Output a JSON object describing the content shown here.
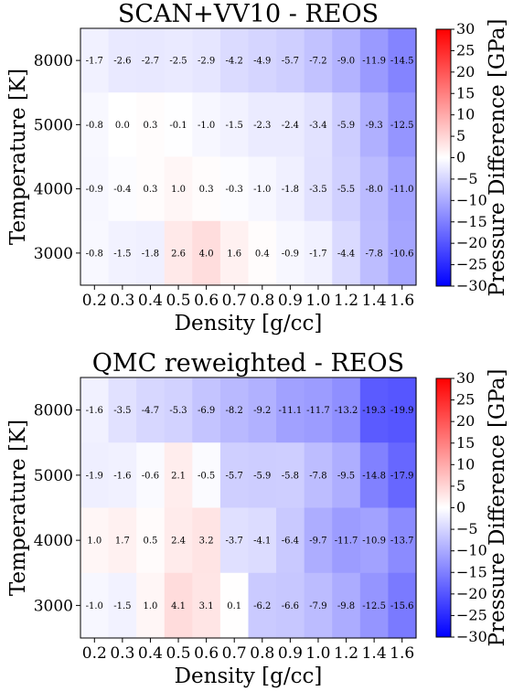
{
  "chart_data": [
    {
      "type": "heatmap",
      "title": "SCAN+VV10 - REOS",
      "xlabel": "Density [g/cc]",
      "ylabel": "Temperature [K]",
      "x_categories": [
        "0.2",
        "0.3",
        "0.4",
        "0.5",
        "0.6",
        "0.7",
        "0.8",
        "0.9",
        "1.0",
        "1.2",
        "1.4",
        "1.6"
      ],
      "y_categories": [
        "8000",
        "5000",
        "4000",
        "3000"
      ],
      "values": [
        [
          -1.7,
          -2.6,
          -2.7,
          -2.5,
          -2.9,
          -4.2,
          -4.9,
          -5.7,
          -7.2,
          -9.0,
          -11.9,
          -14.5
        ],
        [
          -0.8,
          0.0,
          0.3,
          -0.1,
          -1.0,
          -1.5,
          -2.3,
          -2.4,
          -3.4,
          -5.9,
          -9.3,
          -12.5
        ],
        [
          -0.9,
          -0.4,
          0.3,
          1.0,
          0.3,
          -0.3,
          -1.0,
          -1.8,
          -3.5,
          -5.5,
          -8.0,
          -11.0
        ],
        [
          -0.8,
          -1.5,
          -1.8,
          2.6,
          4.0,
          1.6,
          0.4,
          -0.9,
          -1.7,
          -4.4,
          -7.8,
          -10.6
        ]
      ],
      "labels": [
        [
          "-1.7",
          "-2.6",
          "-2.7",
          "-2.5",
          "-2.9",
          "-4.2",
          "-4.9",
          "-5.7",
          "-7.2",
          "-9.0",
          "-11.9",
          "-14.5"
        ],
        [
          "-0.8",
          "0.0",
          "0.3",
          "-0.1",
          "-1.0",
          "-1.5",
          "-2.3",
          "-2.4",
          "-3.4",
          "-5.9",
          "-9.3",
          "-12.5"
        ],
        [
          "-0.9",
          "-0.4",
          "0.3",
          "1.0",
          "0.3",
          "-0.3",
          "-1.0",
          "-1.8",
          "-3.5",
          "-5.5",
          "-8.0",
          "-11.0"
        ],
        [
          "-0.8",
          "-1.5",
          "-1.8",
          "2.6",
          "4.0",
          "1.6",
          "0.4",
          "-0.9",
          "-1.7",
          "-4.4",
          "-7.8",
          "-10.6"
        ]
      ],
      "colorbar": {
        "label": "Pressure Difference [GPa]",
        "range": [
          -30,
          30
        ],
        "ticks": [
          "30",
          "25",
          "20",
          "15",
          "10",
          "5",
          "0",
          "−5",
          "−10",
          "−15",
          "−20",
          "−25",
          "−30"
        ],
        "colormap": "bwr"
      }
    },
    {
      "type": "heatmap",
      "title": "QMC reweighted - REOS",
      "xlabel": "Density [g/cc]",
      "ylabel": "Temperature [K]",
      "x_categories": [
        "0.2",
        "0.3",
        "0.4",
        "0.5",
        "0.6",
        "0.7",
        "0.8",
        "0.9",
        "1.0",
        "1.2",
        "1.4",
        "1.6"
      ],
      "y_categories": [
        "8000",
        "5000",
        "4000",
        "3000"
      ],
      "values": [
        [
          -1.6,
          -3.5,
          -4.7,
          -5.3,
          -6.9,
          -8.2,
          -9.2,
          -11.1,
          -11.7,
          -13.2,
          -19.3,
          -19.9
        ],
        [
          -1.9,
          -1.6,
          -0.6,
          2.1,
          -0.5,
          -5.7,
          -5.9,
          -5.8,
          -7.8,
          -9.5,
          -14.8,
          -17.9
        ],
        [
          1.0,
          1.7,
          0.5,
          2.4,
          3.2,
          -3.7,
          -4.1,
          -6.4,
          -9.7,
          -11.7,
          -10.9,
          -13.7
        ],
        [
          -1.0,
          -1.5,
          1.0,
          4.1,
          3.1,
          0.1,
          -6.2,
          -6.6,
          -7.9,
          -9.8,
          -12.5,
          -15.6
        ]
      ],
      "labels": [
        [
          "-1.6",
          "-3.5",
          "-4.7",
          "-5.3",
          "-6.9",
          "-8.2",
          "-9.2",
          "-11.1",
          "-11.7",
          "-13.2",
          "-19.3",
          "-19.9"
        ],
        [
          "-1.9",
          "-1.6",
          "-0.6",
          "2.1",
          "-0.5",
          "-5.7",
          "-5.9",
          "-5.8",
          "-7.8",
          "-9.5",
          "-14.8",
          "-17.9"
        ],
        [
          "1.0",
          "1.7",
          "0.5",
          "2.4",
          "3.2",
          "-3.7",
          "-4.1",
          "-6.4",
          "-9.7",
          "-11.7",
          "-10.9",
          "-13.7"
        ],
        [
          "-1.0",
          "-1.5",
          "1.0",
          "4.1",
          "3.1",
          "0.1",
          "-6.2",
          "-6.6",
          "-7.9",
          "-9.8",
          "-12.5",
          "-15.6"
        ]
      ],
      "colorbar": {
        "label": "Pressure Difference [GPa]",
        "range": [
          -30,
          30
        ],
        "ticks": [
          "30",
          "25",
          "20",
          "15",
          "10",
          "5",
          "0",
          "−5",
          "−10",
          "−15",
          "−20",
          "−25",
          "−30"
        ],
        "colormap": "bwr"
      }
    }
  ]
}
